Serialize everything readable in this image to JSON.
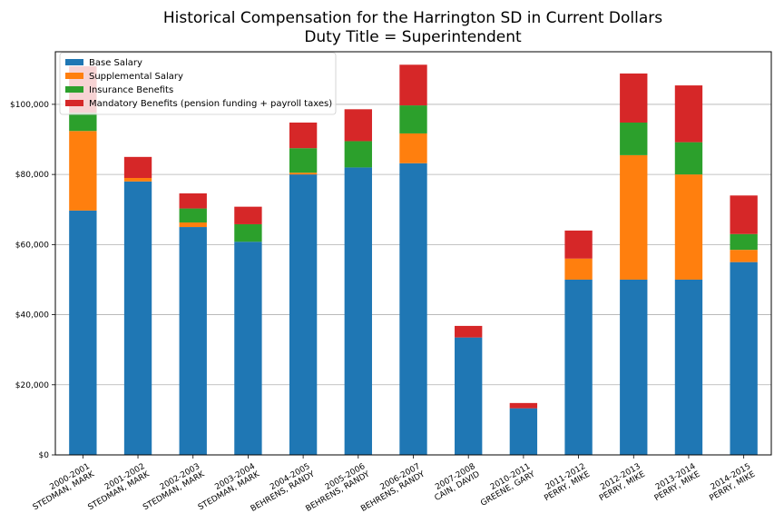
{
  "chart_data": {
    "type": "bar",
    "stacked": true,
    "title": "Historical Compensation for the Harrington SD in Current Dollars",
    "subtitle": "Duty Title = Superintendent",
    "xlabel": "",
    "ylabel": "",
    "ylim": [
      0,
      115000
    ],
    "yticks": [
      0,
      20000,
      40000,
      60000,
      80000,
      100000
    ],
    "ytick_labels": [
      "$0",
      "$20,000",
      "$40,000",
      "$60,000",
      "$80,000",
      "$100,000"
    ],
    "grid": "horizontal",
    "legend_position": "top-left",
    "categories": [
      [
        "2000-2001",
        "STEDMAN, MARK"
      ],
      [
        "2001-2002",
        "STEDMAN, MARK"
      ],
      [
        "2002-2003",
        "STEDMAN, MARK"
      ],
      [
        "2003-2004",
        "STEDMAN, MARK"
      ],
      [
        "2004-2005",
        "BEHRENS, RANDY"
      ],
      [
        "2005-2006",
        "BEHRENS, RANDY"
      ],
      [
        "2006-2007",
        "BEHRENS, RANDY"
      ],
      [
        "2007-2008",
        "CAIN, DAVID"
      ],
      [
        "2010-2011",
        "GREENE, GARY"
      ],
      [
        "2011-2012",
        "PERRY, MIKE"
      ],
      [
        "2012-2013",
        "PERRY, MIKE"
      ],
      [
        "2013-2014",
        "PERRY, MIKE"
      ],
      [
        "2014-2015",
        "PERRY, MIKE"
      ]
    ],
    "series": [
      {
        "name": "Base Salary",
        "color": "#1f77b4",
        "values": [
          69700,
          78000,
          65000,
          60800,
          80000,
          82000,
          83200,
          33500,
          13300,
          50000,
          50000,
          50000,
          55000
        ]
      },
      {
        "name": "Supplemental Salary",
        "color": "#ff7f0e",
        "values": [
          22700,
          1000,
          1300,
          0,
          500,
          0,
          8500,
          0,
          0,
          6000,
          35500,
          30000,
          3500
        ]
      },
      {
        "name": "Insurance Benefits",
        "color": "#2ca02c",
        "values": [
          5200,
          0,
          4000,
          5000,
          7000,
          7500,
          8000,
          0,
          0,
          0,
          9300,
          9200,
          4500
        ]
      },
      {
        "name": "Mandatory Benefits (pension funding + payroll taxes)",
        "color": "#d62728",
        "values": [
          13300,
          6000,
          4300,
          5000,
          7300,
          9100,
          11600,
          3300,
          1500,
          8000,
          14000,
          16200,
          11000
        ]
      }
    ]
  }
}
